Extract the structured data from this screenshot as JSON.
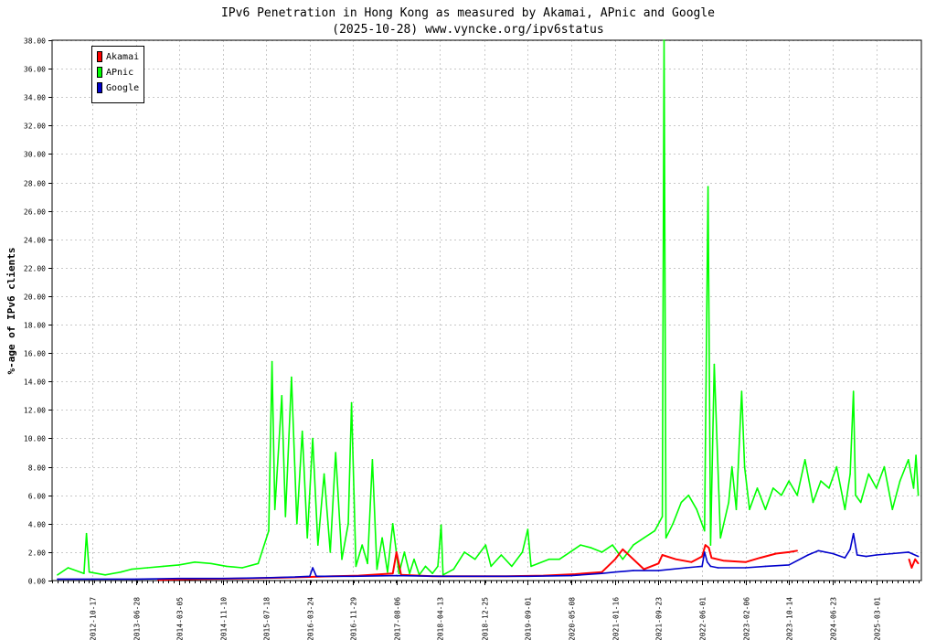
{
  "chart_data": {
    "type": "line",
    "title": "IPv6 Penetration in Hong Kong as measured by Akamai, APnic and Google",
    "subtitle": "(2025-10-28) www.vyncke.org/ipv6status",
    "ylabel": "%-age of IPv6 clients",
    "xlabel": "",
    "ylim": [
      0,
      38
    ],
    "y_ticks": [
      "0.00",
      "2.00",
      "4.00",
      "6.00",
      "8.00",
      "10.00",
      "12.00",
      "14.00",
      "16.00",
      "18.00",
      "20.00",
      "22.00",
      "24.00",
      "26.00",
      "28.00",
      "30.00",
      "32.00",
      "34.00",
      "36.00",
      "38.00"
    ],
    "x_ticks": [
      "2012-10-17",
      "2013-06-28",
      "2014-03-05",
      "2014-11-10",
      "2015-07-18",
      "2016-03-24",
      "2016-11-29",
      "2017-08-06",
      "2018-04-13",
      "2018-12-25",
      "2019-09-01",
      "2020-05-08",
      "2021-01-16",
      "2021-09-23",
      "2022-06-01",
      "2023-02-06",
      "2023-10-14",
      "2024-06-23",
      "2025-03-01"
    ],
    "xlim": [
      "2012-03-01",
      "2025-11-15"
    ],
    "grid": true,
    "legend_position": "top-left",
    "series": [
      {
        "name": "Akamai",
        "color": "#ff0000",
        "x": [
          "2013-11-01",
          "2014-06-01",
          "2015-03-01",
          "2015-10-01",
          "2016-03-01",
          "2016-08-01",
          "2017-01-01",
          "2017-07-15",
          "2017-08-06",
          "2017-09-01",
          "2018-03-01",
          "2018-10-01",
          "2019-05-01",
          "2019-12-01",
          "2020-06-01",
          "2020-11-01",
          "2021-01-16",
          "2021-03-01",
          "2021-07-01",
          "2021-09-23",
          "2021-10-15",
          "2022-01-01",
          "2022-04-01",
          "2022-06-01",
          "2022-06-20",
          "2022-07-10",
          "2022-07-25",
          "2022-10-01",
          "2023-02-06",
          "2023-05-01",
          "2023-08-01",
          "2023-10-14",
          "2023-12-01",
          "2025-08-20",
          "2025-09-05",
          "2025-09-20",
          "2025-10-10",
          "2025-10-28"
        ],
        "values": [
          0.05,
          0.1,
          0.15,
          0.2,
          0.25,
          0.3,
          0.35,
          0.5,
          2.0,
          0.4,
          0.3,
          0.3,
          0.3,
          0.35,
          0.45,
          0.6,
          1.5,
          2.2,
          0.8,
          1.2,
          1.8,
          1.5,
          1.3,
          1.7,
          2.5,
          2.3,
          1.6,
          1.4,
          1.3,
          1.6,
          1.9,
          2.0,
          2.1,
          null,
          1.5,
          0.9,
          1.5,
          1.2
        ]
      },
      {
        "name": "APnic",
        "color": "#00ff00",
        "x": [
          "2012-04-01",
          "2012-06-01",
          "2012-09-01",
          "2012-09-15",
          "2012-10-01",
          "2013-01-01",
          "2013-04-01",
          "2013-06-01",
          "2013-09-01",
          "2013-12-01",
          "2014-03-01",
          "2014-06-01",
          "2014-09-01",
          "2014-12-01",
          "2015-03-01",
          "2015-06-01",
          "2015-08-01",
          "2015-08-20",
          "2015-09-05",
          "2015-10-15",
          "2015-11-05",
          "2015-12-10",
          "2016-01-10",
          "2016-02-10",
          "2016-03-10",
          "2016-04-10",
          "2016-05-10",
          "2016-06-15",
          "2016-07-20",
          "2016-08-20",
          "2016-09-25",
          "2016-11-01",
          "2016-11-20",
          "2016-12-15",
          "2017-01-20",
          "2017-02-20",
          "2017-03-20",
          "2017-04-15",
          "2017-05-15",
          "2017-06-15",
          "2017-07-15",
          "2017-08-20",
          "2017-09-20",
          "2017-10-20",
          "2017-11-15",
          "2017-12-15",
          "2018-01-20",
          "2018-03-01",
          "2018-04-01",
          "2018-04-20",
          "2018-05-01",
          "2018-07-01",
          "2018-09-01",
          "2018-11-01",
          "2019-01-01",
          "2019-02-01",
          "2019-04-01",
          "2019-06-01",
          "2019-08-01",
          "2019-09-01",
          "2019-09-20",
          "2019-11-01",
          "2020-01-01",
          "2020-03-01",
          "2020-05-01",
          "2020-07-01",
          "2020-09-01",
          "2020-11-01",
          "2021-01-01",
          "2021-03-01",
          "2021-05-01",
          "2021-07-01",
          "2021-09-01",
          "2021-10-15",
          "2021-10-25",
          "2021-11-05",
          "2021-12-15",
          "2022-02-01",
          "2022-03-15",
          "2022-05-01",
          "2022-06-15",
          "2022-07-05",
          "2022-07-20",
          "2022-08-10",
          "2022-09-15",
          "2022-11-01",
          "2022-11-20",
          "2022-12-15",
          "2023-01-15",
          "2023-02-01",
          "2023-03-01",
          "2023-04-15",
          "2023-06-01",
          "2023-07-15",
          "2023-09-01",
          "2023-10-14",
          "2023-12-01",
          "2024-01-15",
          "2024-03-01",
          "2024-04-15",
          "2024-06-01",
          "2024-07-15",
          "2024-09-01",
          "2024-10-01",
          "2024-10-20",
          "2024-11-01",
          "2024-12-01",
          "2025-01-15",
          "2025-03-01",
          "2025-04-15",
          "2025-06-01",
          "2025-07-15",
          "2025-09-01",
          "2025-10-01",
          "2025-10-15",
          "2025-10-28"
        ],
        "values": [
          0.4,
          0.9,
          0.5,
          3.3,
          0.6,
          0.4,
          0.6,
          0.8,
          0.9,
          1.0,
          1.1,
          1.3,
          1.2,
          1.0,
          0.9,
          1.2,
          3.5,
          15.4,
          5.0,
          13.0,
          4.5,
          14.3,
          4.0,
          10.5,
          3.0,
          10.0,
          2.5,
          7.5,
          2.0,
          9.0,
          1.5,
          4.0,
          12.5,
          1.0,
          2.5,
          1.2,
          8.5,
          0.8,
          3.0,
          0.6,
          4.0,
          0.5,
          2.0,
          0.5,
          1.5,
          0.4,
          1.0,
          0.5,
          1.0,
          3.9,
          0.4,
          0.8,
          2.0,
          1.5,
          2.5,
          1.0,
          1.8,
          1.0,
          2.0,
          3.6,
          1.0,
          1.2,
          1.5,
          1.5,
          2.0,
          2.5,
          2.3,
          2.0,
          2.5,
          1.5,
          2.5,
          3.0,
          3.5,
          4.5,
          38.0,
          3.0,
          4.0,
          5.5,
          6.0,
          5.0,
          3.5,
          27.7,
          2.5,
          15.2,
          3.0,
          5.5,
          8.0,
          5.0,
          13.3,
          8.0,
          5.0,
          6.5,
          5.0,
          6.5,
          6.0,
          7.0,
          6.0,
          8.5,
          5.5,
          7.0,
          6.5,
          8.0,
          5.0,
          7.5,
          13.3,
          6.0,
          5.5,
          7.5,
          6.5,
          8.0,
          5.0,
          7.0,
          8.5,
          6.5,
          8.8,
          6.0
        ]
      },
      {
        "name": "Google",
        "color": "#0000cc",
        "x": [
          "2012-04-01",
          "2012-10-17",
          "2013-06-28",
          "2014-03-05",
          "2014-11-10",
          "2015-07-18",
          "2016-01-01",
          "2016-03-24",
          "2016-04-10",
          "2016-05-01",
          "2016-11-29",
          "2017-08-06",
          "2018-04-13",
          "2018-12-25",
          "2019-09-01",
          "2020-05-08",
          "2020-11-01",
          "2021-01-16",
          "2021-05-01",
          "2021-09-23",
          "2022-03-01",
          "2022-06-01",
          "2022-06-15",
          "2022-07-01",
          "2022-07-20",
          "2022-09-01",
          "2023-02-06",
          "2023-06-01",
          "2023-10-14",
          "2024-02-01",
          "2024-04-01",
          "2024-06-23",
          "2024-09-01",
          "2024-10-01",
          "2024-10-20",
          "2024-11-10",
          "2025-01-01",
          "2025-03-01",
          "2025-06-01",
          "2025-09-01",
          "2025-10-28"
        ],
        "values": [
          0.1,
          0.1,
          0.1,
          0.15,
          0.15,
          0.2,
          0.25,
          0.3,
          0.9,
          0.3,
          0.3,
          0.35,
          0.3,
          0.3,
          0.3,
          0.35,
          0.5,
          0.6,
          0.7,
          0.7,
          0.9,
          1.0,
          2.0,
          1.3,
          1.0,
          0.9,
          0.9,
          1.0,
          1.1,
          1.8,
          2.1,
          1.9,
          1.6,
          2.2,
          3.3,
          1.8,
          1.7,
          1.8,
          1.9,
          2.0,
          1.7
        ]
      }
    ]
  }
}
